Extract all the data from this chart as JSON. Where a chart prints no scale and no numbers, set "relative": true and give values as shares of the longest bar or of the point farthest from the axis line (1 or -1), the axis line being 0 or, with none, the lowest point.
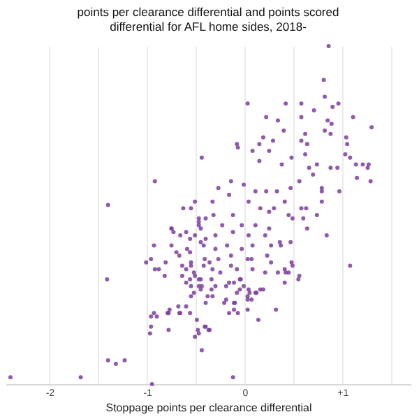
{
  "chart_data": {
    "type": "scatter",
    "title": "points per clearance differential and points scored differential for AFL home sides, 2018-",
    "xlabel": "Stoppage points per clearance differential",
    "relative": true,
    "marker": "circle",
    "grid": "x",
    "xlim": [
      -2.45,
      1.7
    ],
    "xticks": [
      -2,
      {
        "value": -1.5,
        "label": null
      },
      -1,
      {
        "value": -0.5,
        "label": null
      },
      0,
      {
        "value": 0.5,
        "label": null
      },
      {
        "value": 1,
        "label": "+1"
      },
      {
        "value": 1.5,
        "label": null
      }
    ],
    "series": [
      {
        "color": "#7b3f9e",
        "x": [
          0.86,
          0.81,
          0.03,
          0.82,
          0.42,
          0.58,
          0.96,
          0.9,
          0.71,
          0.22,
          0.34,
          0.58,
          0.85,
          0.89,
          1.11,
          0.4,
          1.3,
          0.62,
          0.82,
          0.88,
          1.04,
          0.19,
          0.29,
          0.58,
          0.64,
          -0.08,
          0.15,
          1.05,
          -0.44,
          -0.92,
          -1.4,
          -0.51,
          -0.63,
          -0.55,
          -0.47,
          -0.4,
          -0.47,
          -0.45,
          -0.75,
          -0.73,
          -0.6,
          -0.51,
          -0.66,
          -0.56,
          -0.45,
          -0.4,
          -0.93,
          -0.75,
          -0.59,
          -0.42,
          -0.7,
          -0.56,
          -0.67,
          -0.96,
          -1.01,
          -0.81,
          -0.55,
          -0.41,
          -0.92,
          -0.88,
          -0.64,
          -0.6,
          -0.55,
          -0.52,
          -0.42,
          -0.82,
          -0.64,
          -0.56,
          -0.47,
          -1.41,
          -0.6,
          -0.45,
          -0.07,
          0.08,
          0.25,
          0.48,
          0.62,
          1.03,
          1.08,
          1.14,
          1.21,
          1.27,
          0.74,
          0.88,
          0.95,
          0.66,
          0.15,
          0.38,
          1.26,
          1.15,
          1.29,
          0.7,
          0.56,
          0.47,
          0.79,
          0.97,
          0.79,
          0.79,
          -0.14,
          -0.27,
          -0.01,
          0.11,
          0.22,
          0.33,
          -0.16,
          -0.33,
          0.04,
          0.41,
          0.58,
          0.63,
          0.74,
          0.45,
          -0.32,
          -0.12,
          0.16,
          0.25,
          0.3,
          0.49,
          0.6,
          0.64,
          0.84,
          -0.23,
          -0.03,
          0.11,
          0.25,
          -0.3,
          -0.12,
          0.04,
          0.21,
          0.36,
          0.47,
          -0.3,
          -0.18,
          0.08,
          0.27,
          0.37,
          -0.03,
          0.23,
          0.48,
          -0.14,
          -0.27,
          0.03,
          0.07,
          -0.33,
          -0.14,
          -0.08,
          0.27,
          0.41,
          1.08,
          -0.25,
          0.08,
          0.21,
          0.34,
          0.45,
          0.49,
          0.55,
          0.41,
          -0.05,
          -0.16,
          -0.36,
          -0.75,
          -0.47,
          -0.51,
          -0.55,
          -0.47,
          -0.34,
          -0.34,
          -0.3,
          -0.19,
          -0.11,
          -0.04,
          -0.01,
          0.04,
          0.11,
          0.16,
          0.07,
          0.03,
          -0.21,
          -0.11,
          -0.16,
          -0.07,
          -0.38,
          -0.4,
          -0.45,
          -0.52,
          -0.6,
          -0.68,
          -0.77,
          -0.67,
          -0.56,
          -0.49,
          -0.78,
          -0.93,
          -0.96,
          -0.96,
          -0.97,
          -0.78,
          -0.48,
          -0.41,
          -0.37,
          -0.51,
          -0.44,
          0.14,
          0.32,
          0.56,
          0.42,
          -0.55,
          -0.44,
          -0.9,
          -0.79,
          -0.66,
          -0.47,
          -0.4,
          -1.4,
          -1.32,
          -1.23,
          -2.4,
          -1.68,
          -0.95,
          -0.33,
          -0.19,
          -0.08,
          0.05,
          0.12,
          0.19,
          -0.05,
          0.03,
          -0.1,
          -0.11,
          0.03,
          -0.36,
          -0.12
        ],
        "values": [
          1.0,
          0.9,
          0.83,
          0.85,
          0.83,
          0.83,
          0.83,
          0.82,
          0.81,
          0.79,
          0.78,
          0.79,
          0.78,
          0.77,
          0.79,
          0.75,
          0.76,
          0.74,
          0.75,
          0.74,
          0.73,
          0.73,
          0.72,
          0.72,
          0.71,
          0.71,
          0.71,
          0.71,
          0.67,
          0.6,
          0.53,
          0.54,
          0.52,
          0.52,
          0.49,
          0.49,
          0.48,
          0.46,
          0.46,
          0.45,
          0.45,
          0.44,
          0.44,
          0.43,
          0.42,
          0.43,
          0.41,
          0.41,
          0.4,
          0.41,
          0.39,
          0.39,
          0.38,
          0.37,
          0.36,
          0.36,
          0.36,
          0.37,
          0.34,
          0.34,
          0.35,
          0.34,
          0.35,
          0.33,
          0.35,
          0.32,
          0.32,
          0.31,
          0.31,
          0.31,
          0.3,
          0.31,
          0.7,
          0.69,
          0.69,
          0.67,
          0.68,
          0.68,
          0.67,
          0.65,
          0.65,
          0.65,
          0.65,
          0.64,
          0.64,
          0.64,
          0.66,
          0.65,
          0.64,
          0.61,
          0.6,
          0.62,
          0.6,
          0.58,
          0.58,
          0.57,
          0.57,
          0.54,
          0.6,
          0.58,
          0.59,
          0.57,
          0.57,
          0.57,
          0.56,
          0.54,
          0.54,
          0.54,
          0.52,
          0.52,
          0.5,
          0.5,
          0.5,
          0.5,
          0.52,
          0.51,
          0.52,
          0.49,
          0.49,
          0.46,
          0.44,
          0.47,
          0.47,
          0.47,
          0.46,
          0.44,
          0.45,
          0.44,
          0.44,
          0.42,
          0.42,
          0.4,
          0.41,
          0.41,
          0.41,
          0.41,
          0.4,
          0.38,
          0.36,
          0.38,
          0.37,
          0.37,
          0.37,
          0.34,
          0.35,
          0.34,
          0.36,
          0.34,
          0.35,
          0.33,
          0.34,
          0.33,
          0.33,
          0.33,
          0.35,
          0.31,
          0.3,
          0.31,
          0.3,
          0.36,
          0.46,
          0.47,
          0.32,
          0.29,
          0.29,
          0.31,
          0.28,
          0.29,
          0.29,
          0.3,
          0.31,
          0.29,
          0.28,
          0.27,
          0.28,
          0.25,
          0.26,
          0.24,
          0.24,
          0.21,
          0.21,
          0.26,
          0.24,
          0.28,
          0.27,
          0.23,
          0.23,
          0.22,
          0.21,
          0.21,
          0.19,
          0.21,
          0.21,
          0.2,
          0.17,
          0.15,
          0.16,
          0.16,
          0.17,
          0.16,
          0.14,
          0.1,
          0.19,
          0.22,
          0.32,
          0.33,
          0.26,
          0.29,
          0.2,
          0.21,
          0.21,
          0.15,
          0.17,
          0.07,
          0.06,
          0.07,
          0.02,
          0.02,
          0.0,
          0.26,
          0.25,
          0.27,
          0.27,
          0.27,
          0.28,
          0.28,
          0.25,
          0.24,
          0.22,
          0.22,
          0.16,
          0.02
        ]
      }
    ]
  }
}
